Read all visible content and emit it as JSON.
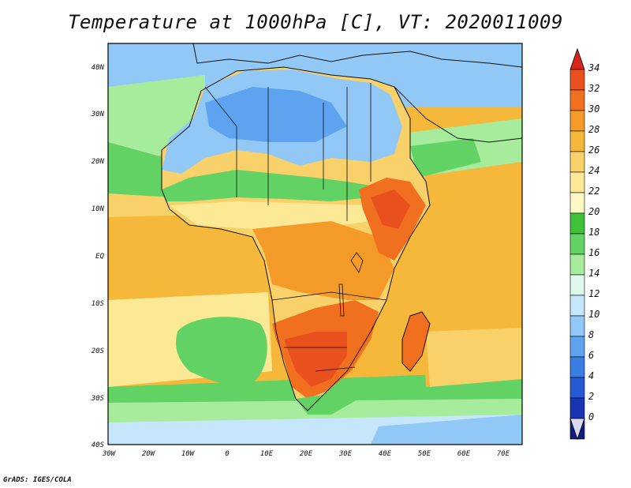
{
  "title": "Temperature at 1000hPa [C], VT: 2020011009",
  "credit": "GrADS: IGES/COLA",
  "map": {
    "lat_labels": [
      "40N",
      "30N",
      "20N",
      "10N",
      "EQ",
      "10S",
      "20S",
      "30S",
      "40S"
    ],
    "lon_labels": [
      "30W",
      "20W",
      "10W",
      "0",
      "10E",
      "20E",
      "30E",
      "40E",
      "50E",
      "60E",
      "70E"
    ]
  },
  "colorbar": {
    "labels": [
      "34",
      "32",
      "30",
      "28",
      "26",
      "24",
      "22",
      "20",
      "18",
      "16",
      "14",
      "12",
      "10",
      "8",
      "6",
      "4",
      "2",
      "0"
    ],
    "colors": [
      "#e8501e",
      "#f07020",
      "#f39a28",
      "#f6b83a",
      "#f8d16a",
      "#fbe996",
      "#fdf8c6",
      "#3fc23a",
      "#62d264",
      "#a6ec9c",
      "#dff8ee",
      "#c6e6fb",
      "#92c8f6",
      "#5ea3ef",
      "#3a7ee4",
      "#255ad4",
      "#1836b4",
      "#0e1d80"
    ],
    "top_arrow_color": "#d6281a",
    "bottom_arrow_color": "#d8d8f4"
  }
}
